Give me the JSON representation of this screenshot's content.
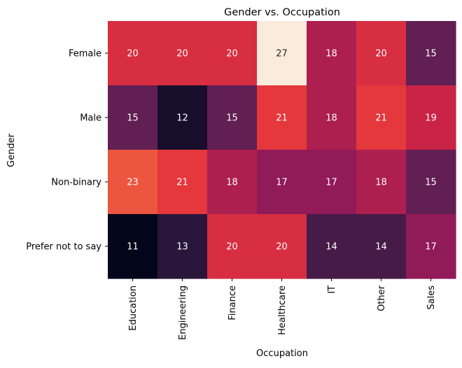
{
  "chart_data": {
    "type": "heatmap",
    "title": "Gender vs. Occupation",
    "xlabel": "Occupation",
    "ylabel": "Gender",
    "x_categories": [
      "Education",
      "Engineering",
      "Finance",
      "Healthcare",
      "IT",
      "Other",
      "Sales"
    ],
    "y_categories": [
      "Female",
      "Male",
      "Non-binary",
      "Prefer not to say"
    ],
    "values": [
      [
        20,
        20,
        20,
        27,
        18,
        20,
        15
      ],
      [
        15,
        12,
        15,
        21,
        18,
        21,
        19
      ],
      [
        23,
        21,
        18,
        17,
        17,
        18,
        15
      ],
      [
        11,
        13,
        20,
        20,
        14,
        14,
        17
      ]
    ],
    "value_range": [
      11,
      27
    ],
    "colormap": "rocket",
    "annotations": true,
    "colorbar": false,
    "grid": false
  }
}
